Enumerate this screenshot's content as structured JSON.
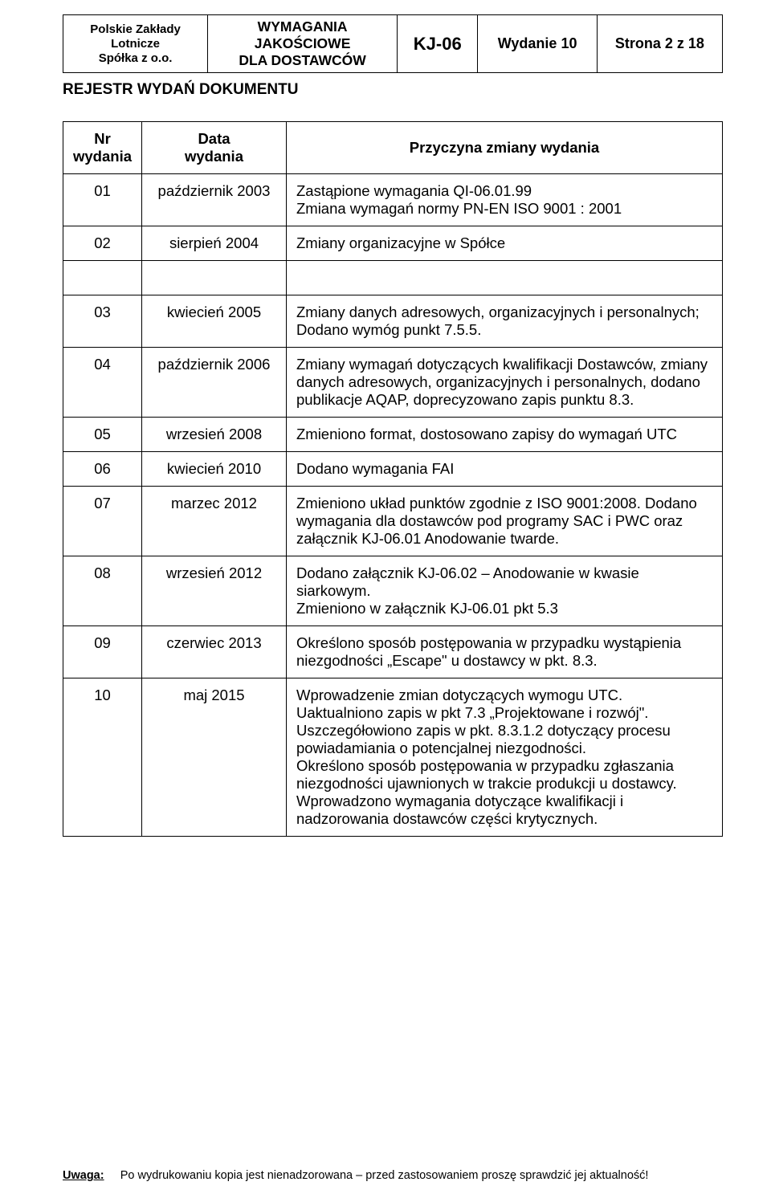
{
  "header": {
    "company_line1": "Polskie Zakłady Lotnicze",
    "company_line2": "Spółka z o.o.",
    "title_line1": "WYMAGANIA JAKOŚCIOWE",
    "title_line2": "DLA DOSTAWCÓW",
    "doc_code": "KJ-06",
    "edition_label": "Wydanie",
    "edition_no": "10",
    "page_label": "Strona 2 z 18"
  },
  "register_title": "REJESTR WYDAŃ DOKUMENTU",
  "columns": {
    "nr_l1": "Nr",
    "nr_l2": "wydania",
    "date_l1": "Data",
    "date_l2": "wydania",
    "reason": "Przyczyna zmiany wydania"
  },
  "rows": [
    {
      "nr": "01",
      "date": "październik 2003",
      "desc": "Zastąpione wymagania QI-06.01.99\nZmiana wymagań normy PN-EN ISO 9001 : 2001"
    },
    {
      "nr": "02",
      "date": "sierpień 2004",
      "desc": "Zmiany organizacyjne w Spółce"
    },
    {
      "nr": "03",
      "date": "kwiecień 2005",
      "desc": "Zmiany danych adresowych, organizacyjnych i personalnych;\nDodano wymóg punkt 7.5.5."
    },
    {
      "nr": "04",
      "date": "październik 2006",
      "desc": "Zmiany wymagań dotyczących kwalifikacji Dostawców, zmiany danych adresowych, organizacyjnych i personalnych, dodano publikacje AQAP, doprecyzowano zapis punktu 8.3."
    },
    {
      "nr": "05",
      "date": "wrzesień 2008",
      "desc": "Zmieniono format, dostosowano zapisy do wymagań UTC"
    },
    {
      "nr": "06",
      "date": "kwiecień 2010",
      "desc": "Dodano wymagania FAI"
    },
    {
      "nr": "07",
      "date": "marzec 2012",
      "desc": "Zmieniono układ punktów zgodnie z ISO 9001:2008. Dodano wymagania dla dostawców pod programy SAC i PWC oraz załącznik KJ-06.01 Anodowanie twarde."
    },
    {
      "nr": "08",
      "date": "wrzesień 2012",
      "desc": "Dodano załącznik KJ-06.02 – Anodowanie w kwasie siarkowym.\nZmieniono w załącznik KJ-06.01 pkt 5.3"
    },
    {
      "nr": "09",
      "date": "czerwiec 2013",
      "desc": "Określono sposób postępowania w przypadku wystąpienia niezgodności „Escape\" u dostawcy w pkt. 8.3."
    },
    {
      "nr": "10",
      "date": "maj 2015",
      "desc": "Wprowadzenie zmian dotyczących wymogu UTC. Uaktualniono zapis w pkt 7.3 „Projektowane i rozwój\". Uszczegółowiono zapis w pkt. 8.3.1.2 dotyczący procesu powiadamiania o potencjalnej niezgodności.\nOkreślono sposób postępowania w przypadku zgłaszania niezgodności ujawnionych w trakcie produkcji u dostawcy. Wprowadzono wymagania dotyczące kwalifikacji i nadzorowania dostawców części krytycznych."
    }
  ],
  "footer": {
    "label": "Uwaga:",
    "text": "Po wydrukowaniu kopia jest nienadzorowana – przed zastosowaniem proszę sprawdzić jej aktualność!"
  }
}
